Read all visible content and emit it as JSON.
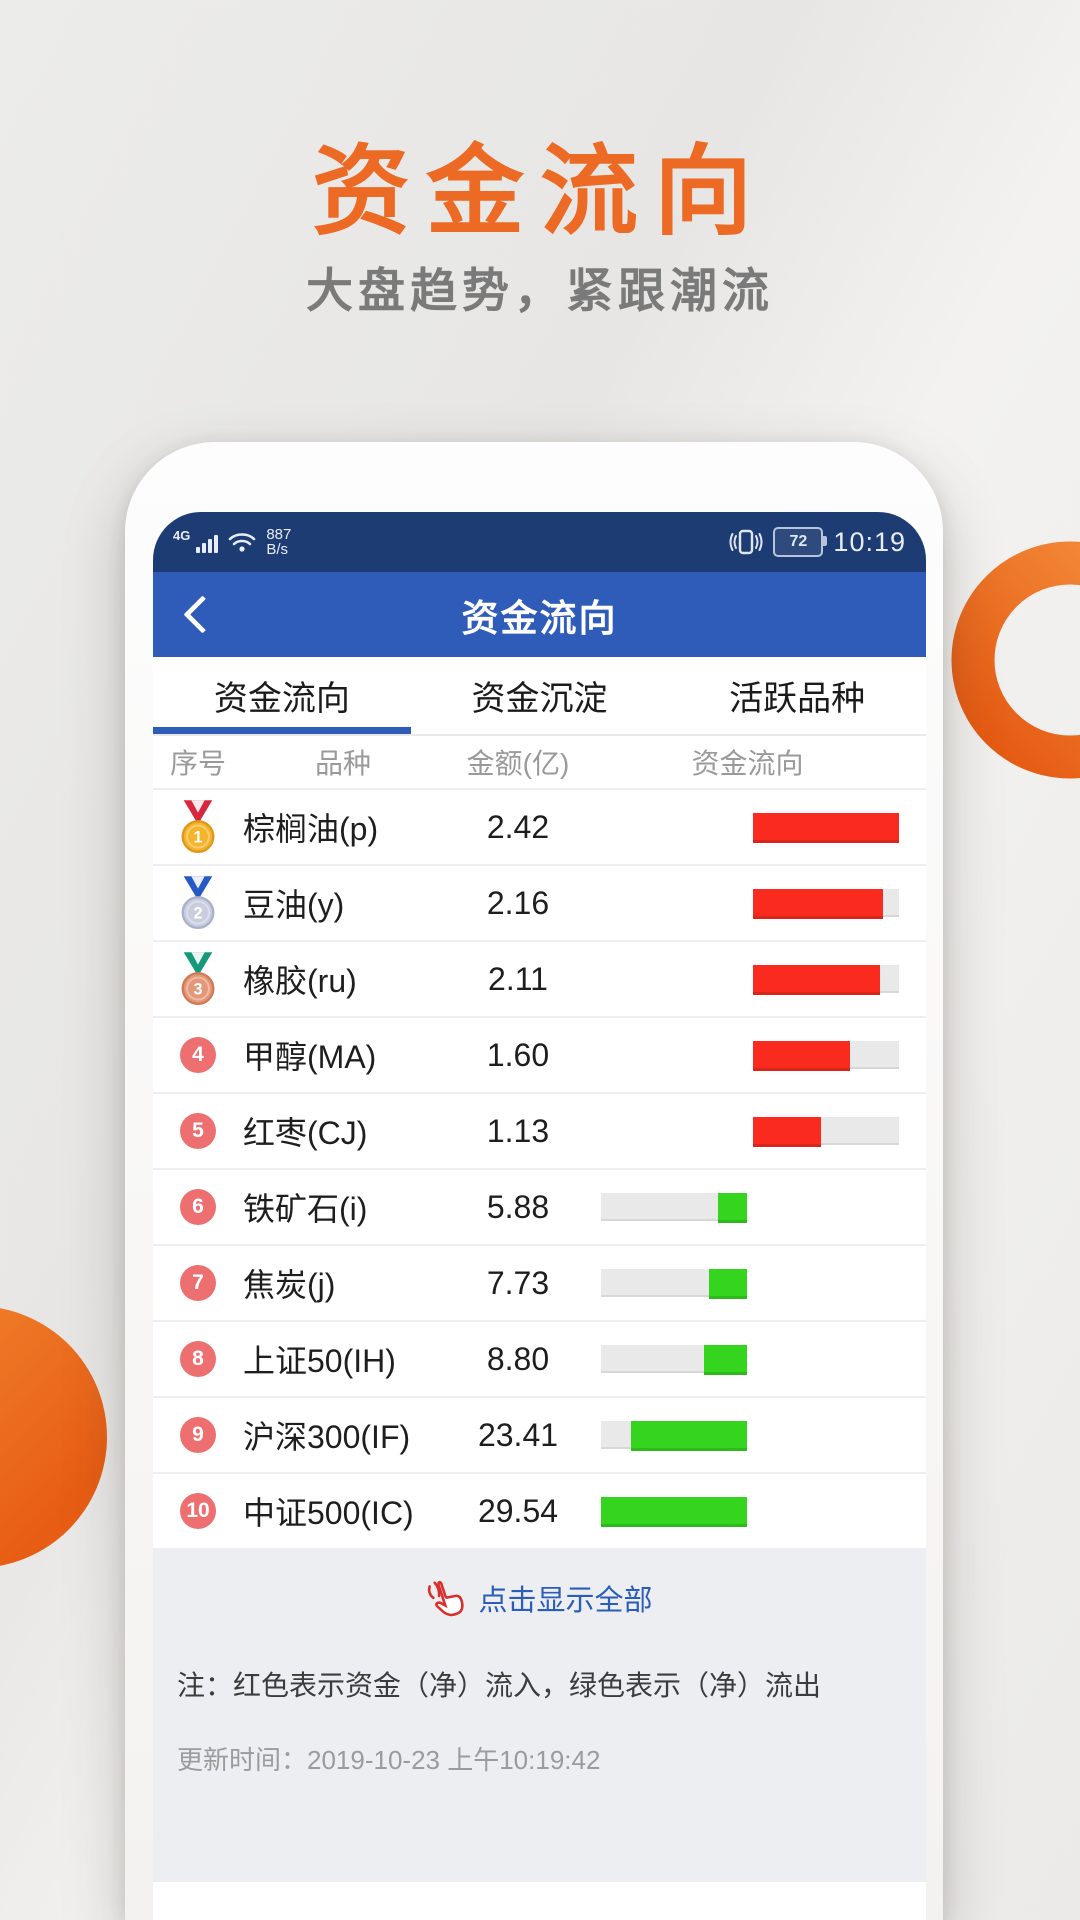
{
  "hero": {
    "title": "资金流向",
    "subtitle": "大盘趋势，紧跟潮流"
  },
  "statusbar": {
    "network": "4G",
    "speed_value": "887",
    "speed_unit": "B/s",
    "battery": "72",
    "time": "10:19"
  },
  "nav": {
    "title": "资金流向"
  },
  "tabs": [
    {
      "label": "资金流向",
      "active": true
    },
    {
      "label": "资金沉淀",
      "active": false
    },
    {
      "label": "活跃品种",
      "active": false
    }
  ],
  "table": {
    "headers": {
      "seq": "序号",
      "name": "品种",
      "amount": "金额(亿)",
      "flow": "资金流向"
    },
    "rows": [
      {
        "rank": 1,
        "medal": "gold",
        "name": "棕榈油(p)",
        "value": "2.42",
        "flow": "in"
      },
      {
        "rank": 2,
        "medal": "silver",
        "name": "豆油(y)",
        "value": "2.16",
        "flow": "in"
      },
      {
        "rank": 3,
        "medal": "bronze",
        "name": "橡胶(ru)",
        "value": "2.11",
        "flow": "in"
      },
      {
        "rank": 4,
        "medal": null,
        "name": "甲醇(MA)",
        "value": "1.60",
        "flow": "in"
      },
      {
        "rank": 5,
        "medal": null,
        "name": "红枣(CJ)",
        "value": "1.13",
        "flow": "in"
      },
      {
        "rank": 6,
        "medal": null,
        "name": "铁矿石(i)",
        "value": "5.88",
        "flow": "out"
      },
      {
        "rank": 7,
        "medal": null,
        "name": "焦炭(j)",
        "value": "7.73",
        "flow": "out"
      },
      {
        "rank": 8,
        "medal": null,
        "name": "上证50(IH)",
        "value": "8.80",
        "flow": "out"
      },
      {
        "rank": 9,
        "medal": null,
        "name": "沪深300(IF)",
        "value": "23.41",
        "flow": "out"
      },
      {
        "rank": 10,
        "medal": null,
        "name": "中证500(IC)",
        "value": "29.54",
        "flow": "out"
      }
    ]
  },
  "chart_data": {
    "type": "bar",
    "title": "资金流向",
    "categories": [
      "棕榈油(p)",
      "豆油(y)",
      "橡胶(ru)",
      "甲醇(MA)",
      "红枣(CJ)",
      "铁矿石(i)",
      "焦炭(j)",
      "上证50(IH)",
      "沪深300(IF)",
      "中证500(IC)"
    ],
    "values": [
      2.42,
      2.16,
      2.11,
      1.6,
      1.13,
      5.88,
      7.73,
      8.8,
      23.41,
      29.54
    ],
    "directions": [
      "流入",
      "流入",
      "流入",
      "流入",
      "流入",
      "流出",
      "流出",
      "流出",
      "流出",
      "流出"
    ],
    "xlabel": "金额(亿)",
    "ylabel": "品种"
  },
  "footer": {
    "show_all": "点击显示全部",
    "note": "注：红色表示资金（净）流入，绿色表示（净）流出",
    "update_time": "更新时间：2019-10-23 上午10:19:42"
  },
  "medals": {
    "gold": {
      "circle": "#f5b42b",
      "edge": "#e0981a",
      "ribbon": "#d7263d"
    },
    "silver": {
      "circle": "#c9cdde",
      "edge": "#aab1cc",
      "ribbon": "#2658c8"
    },
    "bronze": {
      "circle": "#e49879",
      "edge": "#cf7b58",
      "ribbon": "#16987a"
    }
  },
  "colors": {
    "accent_orange": "#ec6a24",
    "nav_blue": "#2f5cb8",
    "statusbar_navy": "#1e3c74",
    "inflow_red": "#fa2b1e",
    "outflow_green": "#34d41f",
    "rank_circle": "#ee6f6f",
    "link_blue": "#2b5cb8",
    "hand_red": "#d9302c"
  }
}
